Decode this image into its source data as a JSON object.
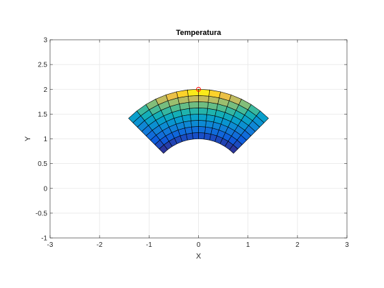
{
  "chart_data": {
    "type": "heatmap",
    "title": "Temperatura",
    "xlabel": "X",
    "ylabel": "Y",
    "xlim": [
      -3,
      3
    ],
    "ylim": [
      -1,
      3
    ],
    "xticks": [
      -3,
      -2,
      -1,
      0,
      1,
      2,
      3
    ],
    "yticks": [
      -1,
      -0.5,
      0,
      0.5,
      1,
      1.5,
      2,
      2.5,
      3
    ],
    "grid": true,
    "colormap": "parula",
    "mesh": {
      "shape": "annular-sector",
      "center": [
        0,
        0
      ],
      "r_inner": 1.0,
      "r_outer": 2.0,
      "theta_start_deg": 45,
      "theta_end_deg": 135,
      "radial_cells": 8,
      "angular_cells": 14
    },
    "temperature_pattern": "increases with radius (cold inner edge, hot outer edge), colder near the angular ends",
    "marker": {
      "x": 0,
      "y": 2,
      "symbol": "circle",
      "color": "#ff0000"
    }
  },
  "colors": {
    "grid": "#e6e6e6",
    "axis": "#262626",
    "edge": "#000000",
    "marker": "#ff0000"
  }
}
